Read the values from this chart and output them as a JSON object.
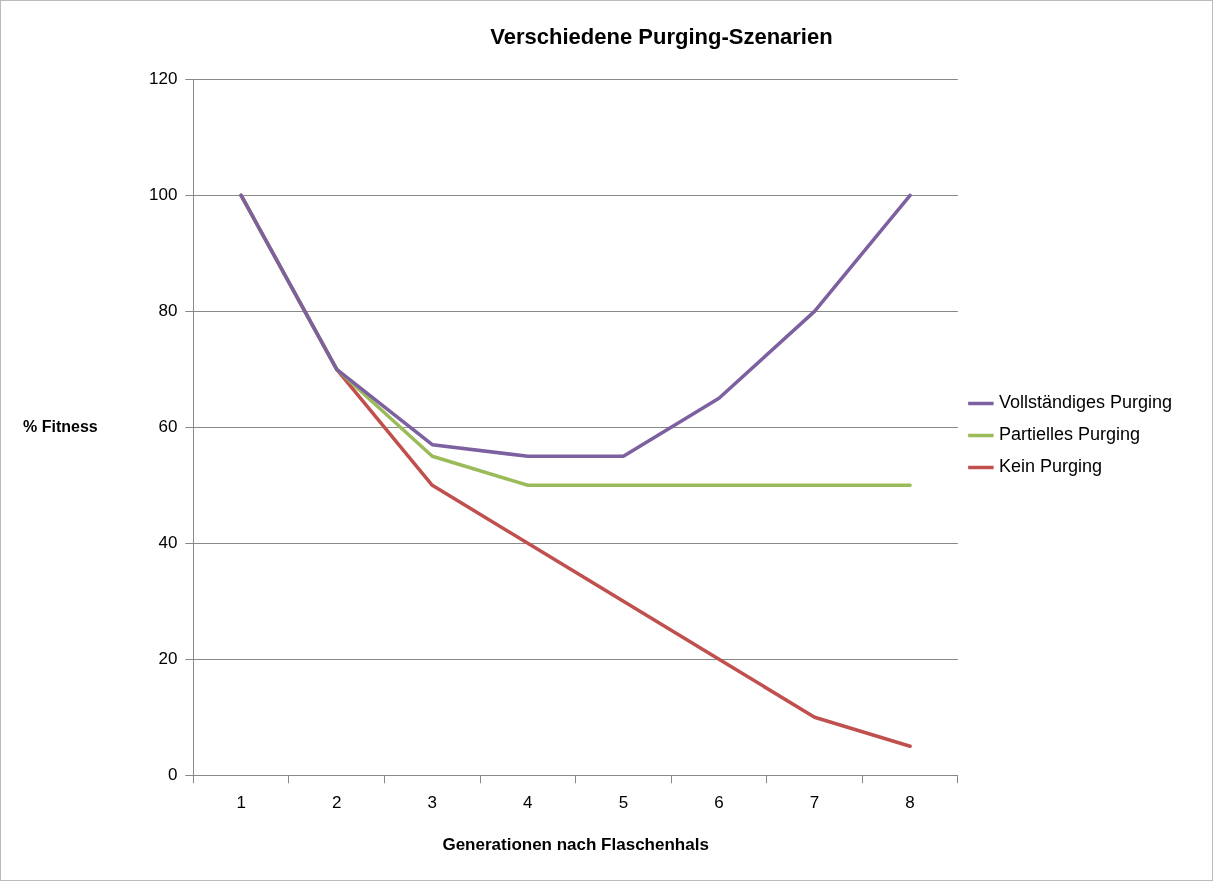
{
  "chart_data": {
    "type": "line",
    "title": "Verschiedene Purging-Szenarien",
    "xlabel": "Generationen nach Flaschenhals",
    "ylabel": "% Fitness",
    "categories": [
      "1",
      "2",
      "3",
      "4",
      "5",
      "6",
      "7",
      "8"
    ],
    "series": [
      {
        "name": "Vollständiges Purging",
        "color": "#7d60a0",
        "values": [
          100,
          70,
          57,
          55,
          55,
          65,
          80,
          100
        ]
      },
      {
        "name": "Partielles Purging",
        "color": "#9bbb59",
        "values": [
          100,
          70,
          55,
          50,
          50,
          50,
          50,
          50
        ]
      },
      {
        "name": "Kein Purging",
        "color": "#c0504d",
        "values": [
          100,
          70,
          50,
          40,
          30,
          20,
          10,
          5
        ]
      }
    ],
    "ylim": [
      0,
      120
    ],
    "yticks": [
      0,
      20,
      40,
      60,
      80,
      100,
      120
    ],
    "grid": "y",
    "legend": "right",
    "marker": "none",
    "line_style": "solid"
  }
}
